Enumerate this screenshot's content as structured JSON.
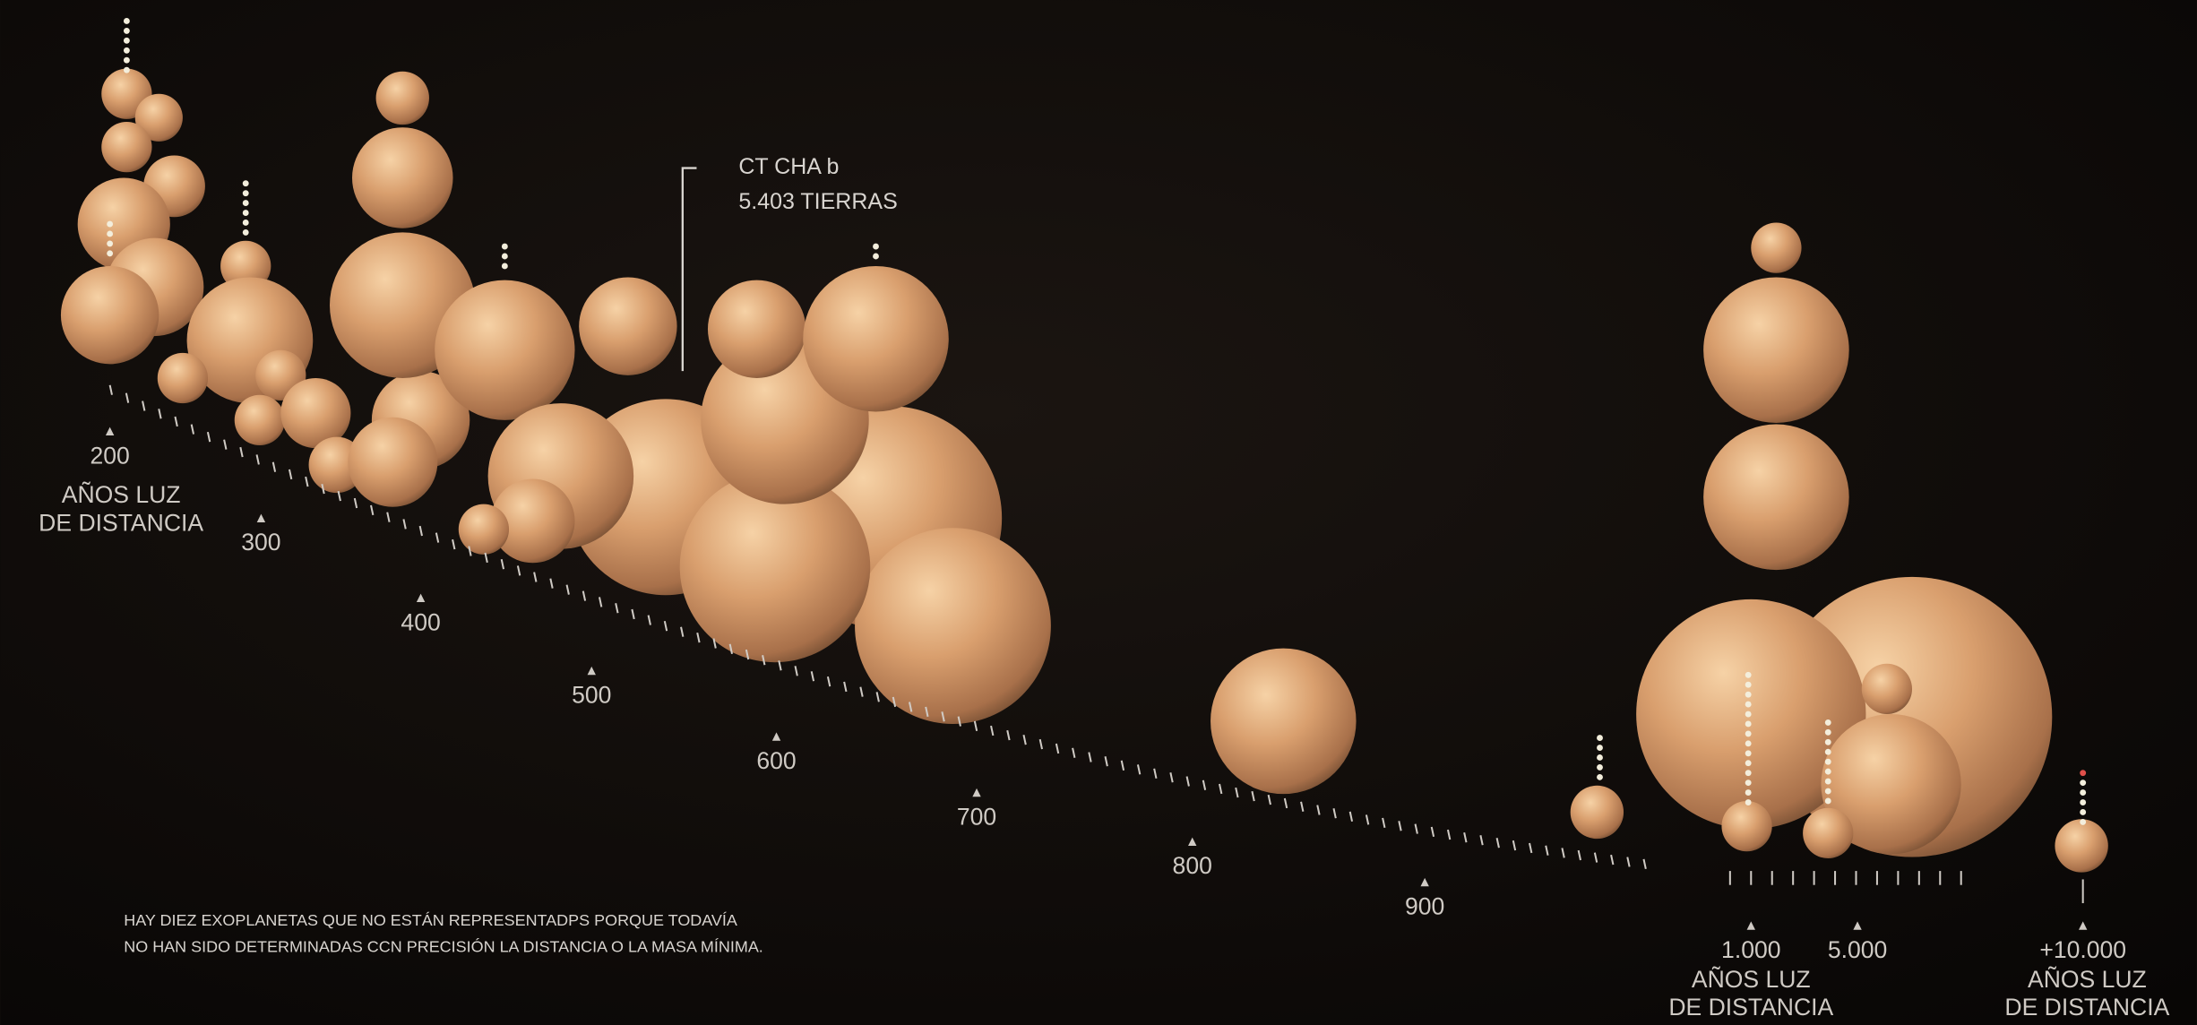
{
  "axis": {
    "ticks": [
      "200",
      "300",
      "400",
      "500",
      "600",
      "700",
      "800",
      "900",
      "1.000",
      "5.000",
      "+10.000"
    ],
    "unit_label": [
      "AÑOS LUZ",
      "DE DISTANCIA"
    ]
  },
  "annotation": {
    "name": "CT CHA b",
    "mass": "5.403 TIERRAS"
  },
  "note": [
    "HAY DIEZ EXOPLANETAS QUE NO ESTÁN REPRESENTADPS PORQUE TODAVÍA",
    "NO HAN SIDO DETERMINADAS CCN PRECISIÓN LA DISTANCIA O LA MASA MÍNIMA."
  ]
}
